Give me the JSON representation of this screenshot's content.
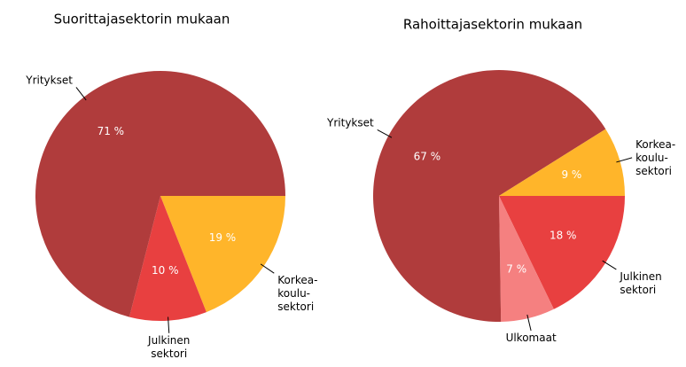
{
  "chart_data": [
    {
      "type": "pie",
      "title": "Suorittajasektorin mukaan",
      "categories": [
        "Korkea-\nkoulu-\nsektori",
        "Julkinen\nsektori",
        "Yritykset"
      ],
      "values": [
        19,
        10,
        71
      ],
      "value_labels": [
        "19 %",
        "10 %",
        "71 %"
      ],
      "colors": [
        "#ffb52a",
        "#e84040",
        "#b03c3c"
      ]
    },
    {
      "type": "pie",
      "title": "Rahoittajasektorin mukaan",
      "categories": [
        "Julkinen\nsektori",
        "Ulkomaat",
        "Yritykset",
        "Korkea-\nkoulu-\nsektori"
      ],
      "values": [
        18,
        7,
        67,
        9
      ],
      "value_labels": [
        "18 %",
        "7 %",
        "67 %",
        "9 %"
      ],
      "colors": [
        "#e84040",
        "#f58080",
        "#b03c3c",
        "#ffb52a"
      ]
    }
  ]
}
